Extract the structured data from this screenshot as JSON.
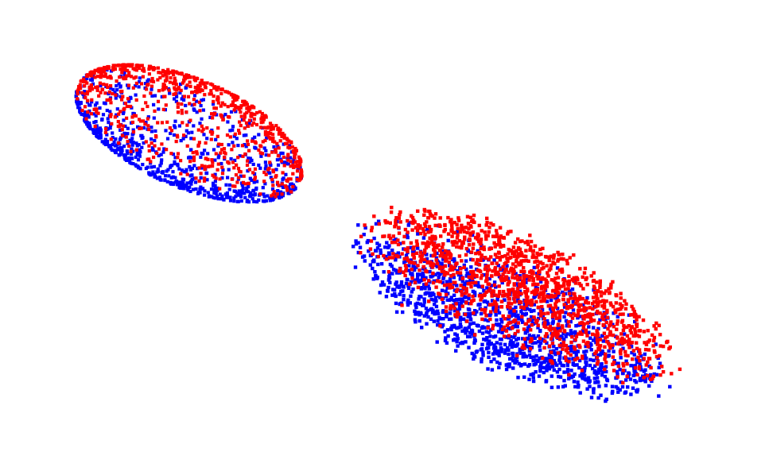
{
  "scene": {
    "background_color": "#ffffff",
    "point_shape": "square",
    "colors": {
      "blue": "#0000ff",
      "red": "#ff0000"
    },
    "clouds": [
      {
        "name": "upper-left-ellipsoid",
        "kind": "surface-shell",
        "front_color": "red",
        "back_color": "blue"
      },
      {
        "name": "lower-right-ellipsoid",
        "kind": "volume-filled",
        "front_color": "red",
        "back_color": "blue"
      }
    ]
  }
}
